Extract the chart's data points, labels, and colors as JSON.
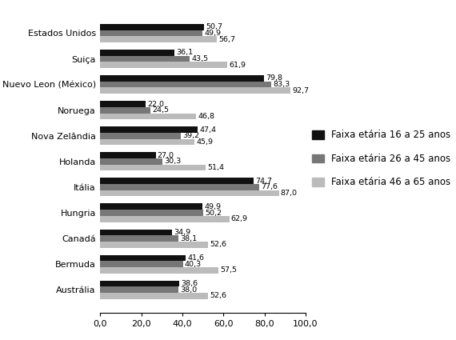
{
  "countries": [
    "Estados Unidos",
    "Suiça",
    "Nuevo Leon (México)",
    "Noruega",
    "Nova Zelândia",
    "Holanda",
    "Itália",
    "Hungria",
    "Canadá",
    "Bermuda",
    "Austrália"
  ],
  "faixa_16_25": [
    50.7,
    36.1,
    79.8,
    22.0,
    47.4,
    27.0,
    74.7,
    49.9,
    34.9,
    41.6,
    38.6
  ],
  "faixa_26_45": [
    49.9,
    43.5,
    83.3,
    24.5,
    39.2,
    30.3,
    77.6,
    50.2,
    38.1,
    40.3,
    38.0
  ],
  "faixa_46_65": [
    56.7,
    61.9,
    92.7,
    46.8,
    45.9,
    51.4,
    87.0,
    62.9,
    52.6,
    57.5,
    52.6
  ],
  "color_16_25": "#111111",
  "color_26_45": "#777777",
  "color_46_65": "#bbbbbb",
  "legend_labels": [
    "Faixa etária 16 a 25 anos",
    "Faixa etária 26 a 45 anos",
    "Faixa etária 46 a 65 anos"
  ],
  "xlim": [
    0,
    100
  ],
  "xticks": [
    0.0,
    20.0,
    40.0,
    60.0,
    80.0,
    100.0
  ],
  "xtick_labels": [
    "0,0",
    "20,0",
    "40,0",
    "60,0",
    "80,0",
    "100,0"
  ],
  "bar_height": 0.24,
  "label_fontsize": 6.8,
  "tick_fontsize": 8,
  "legend_fontsize": 8.5
}
